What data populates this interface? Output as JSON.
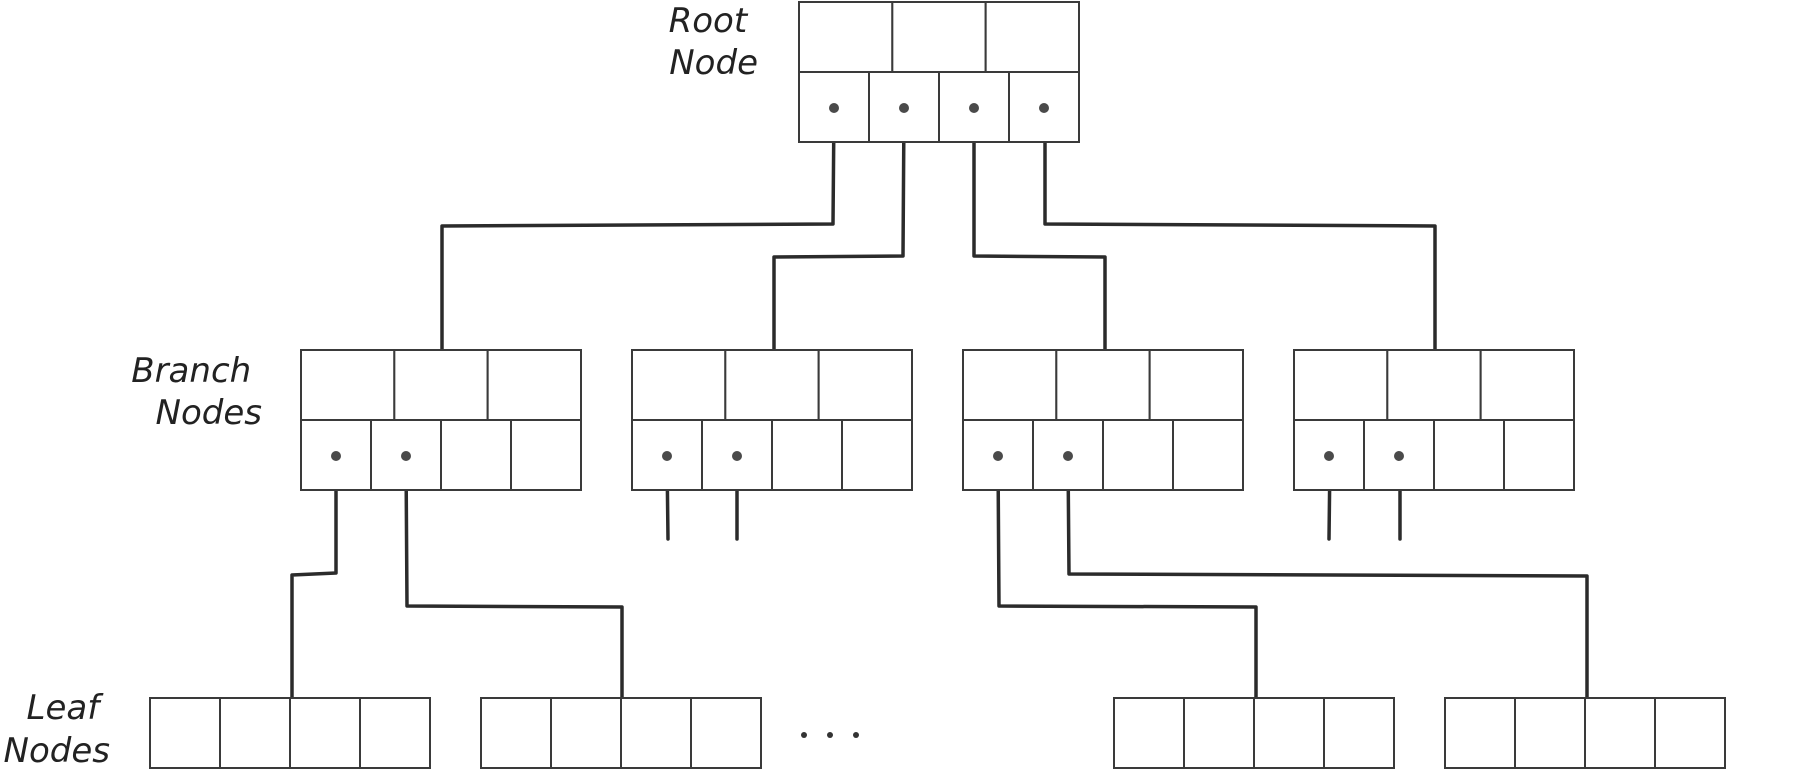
{
  "labels": {
    "root": [
      "Root",
      "Node"
    ],
    "branch": [
      "Branch",
      "Nodes"
    ],
    "leaf": [
      "Leaf",
      "Nodes"
    ]
  },
  "colors": {
    "ink": "#2b2b2b",
    "background": "#ffffff"
  }
}
